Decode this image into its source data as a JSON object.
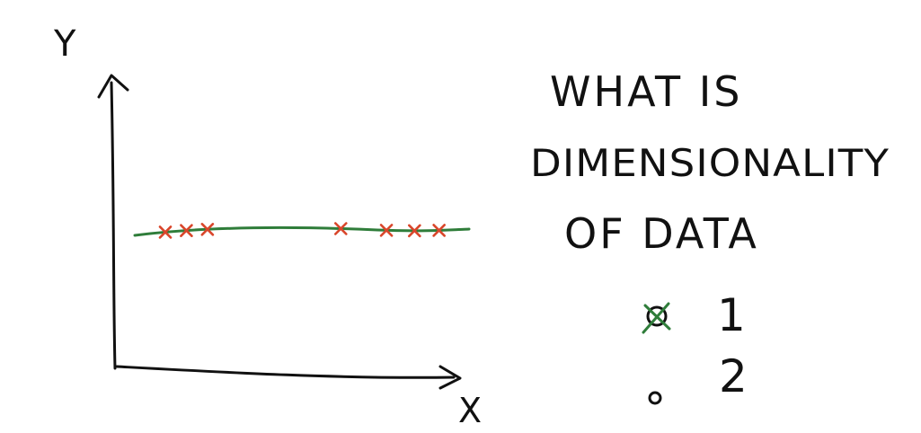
{
  "diagram": {
    "axes": {
      "x_label": "X",
      "y_label": "Y"
    },
    "data_points": [
      {
        "x": 1.0
      },
      {
        "x": 1.6
      },
      {
        "x": 2.2
      },
      {
        "x": 6.0
      },
      {
        "x": 7.3
      },
      {
        "x": 8.1
      },
      {
        "x": 8.8
      }
    ],
    "fit_line_color": "#2f7d3a",
    "point_color": "#d9462b"
  },
  "question": {
    "lines": [
      "WHAT IS",
      "DIMENSIONALITY",
      "OF DATA"
    ]
  },
  "options": [
    {
      "marker": "selected",
      "label": "1",
      "selected": true
    },
    {
      "marker": "empty",
      "label": "2",
      "selected": false
    }
  ],
  "colors": {
    "ink": "#111111",
    "check": "#2f7d3a"
  }
}
